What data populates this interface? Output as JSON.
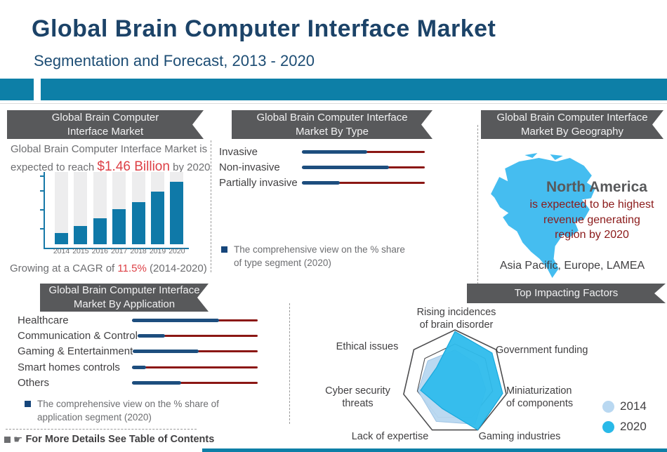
{
  "header": {
    "title": "Global Brain Computer Interface Market",
    "subtitle": "Segmentation and Forecast, 2013 - 2020"
  },
  "market_panel": {
    "banner_line1": "Global Brain Computer",
    "banner_line2": "Interface Market",
    "desc_prefix": "Global Brain Computer Interface Market is expected to reach ",
    "desc_highlight": "$1.46 Billion",
    "desc_suffix": " by 2020",
    "cagr_prefix": "Growing at a CAGR of ",
    "cagr_highlight": "11.5%",
    "cagr_suffix": " (2014-2020)"
  },
  "type_panel": {
    "banner_line1": "Global Brain Computer Interface",
    "banner_line2": "Market By Type",
    "note": "The comprehensive view on the % share of type segment (2020)"
  },
  "geo_panel": {
    "banner_line1": "Global Brain Computer Interface",
    "banner_line2": "Market By Geography",
    "region": "North America",
    "note": "is expected to be highest\nrevenue generating\nregion by 2020",
    "other_regions": "Asia Pacific, Europe, LAMEA"
  },
  "application_panel": {
    "banner_line1": "Global Brain Computer Interface",
    "banner_line2": "Market By Application",
    "note": "The comprehensive view on the % share of application segment (2020)"
  },
  "factors_panel": {
    "banner": "Top Impacting Factors",
    "legend": [
      {
        "label": "2014",
        "color": "#b9d8f1"
      },
      {
        "label": "2020",
        "color": "#29b9e8"
      }
    ]
  },
  "footer": {
    "note": "For More Details See Table of Contents"
  },
  "colors": {
    "accent_teal": "#0d7fa7",
    "title_navy": "#1c4368",
    "ribbon_gray": "#58595b",
    "bar_teal": "#0f79a8",
    "bar_navy": "#1d4e7e",
    "bar_maroon": "#8b1714",
    "highlight_red": "#dd4046",
    "dark_red": "#8b1a1a",
    "map_blue": "#45bdf0",
    "radar_2014": "#b9d8f1",
    "radar_2020": "#2ebcec"
  },
  "chart_data": [
    {
      "type": "bar",
      "title": "",
      "categories": [
        "2014",
        "2015",
        "2016",
        "2017",
        "2018",
        "2019",
        "2020"
      ],
      "values": [
        16,
        25,
        36,
        49,
        58,
        73,
        86
      ],
      "xlabel": "",
      "ylabel": "",
      "ylim": [
        0,
        100
      ],
      "note": "no numeric axis labels shown; values estimated as % of plot height"
    },
    {
      "type": "bar",
      "orientation": "horizontal",
      "title": "Global Brain Computer Interface Market By Type",
      "categories": [
        "Invasive",
        "Non-invasive",
        "Partially invasive"
      ],
      "values": [
        53,
        71,
        31
      ],
      "xlim": [
        0,
        100
      ],
      "note": "blue fill = approx % share of full track; maroon line = remainder"
    },
    {
      "type": "bar",
      "orientation": "horizontal",
      "title": "Global Brain Computer Interface Market By Application",
      "categories": [
        "Healthcare",
        "Communication & Control",
        "Gaming & Entertainment",
        "Smart homes controls",
        "Others"
      ],
      "values": [
        69,
        23,
        53,
        11,
        39
      ],
      "xlim": [
        0,
        100
      ],
      "note": "blue fill = approx % share of full track; maroon line = remainder"
    },
    {
      "type": "radar",
      "title": "Top Impacting Factors",
      "categories": [
        "Rising incidences\nof brain disorder",
        "Government funding",
        "Miniaturization\nof components",
        "Gaming industries",
        "Lack of expertise",
        "Cyber security\nthreats",
        "Ethical issues"
      ],
      "series": [
        {
          "name": "2014",
          "values": [
            0.62,
            0.55,
            0.6,
            0.88,
            0.82,
            0.72,
            0.66
          ]
        },
        {
          "name": "2020",
          "values": [
            0.97,
            0.9,
            0.93,
            1.0,
            0.55,
            0.67,
            0.45
          ]
        }
      ],
      "scale": [
        0,
        1
      ],
      "legend_position": "right"
    }
  ]
}
